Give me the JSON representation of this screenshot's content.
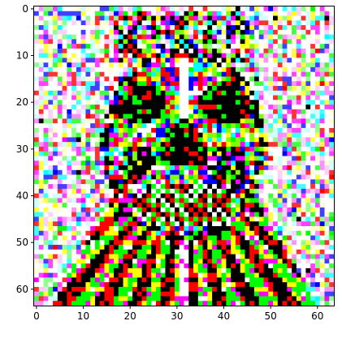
{
  "chart_data": {
    "type": "heatmap",
    "title": "",
    "xlabel": "",
    "ylabel": "",
    "grid_size": [
      64,
      64
    ],
    "xlim": [
      -0.5,
      63.5
    ],
    "ylim": [
      63.5,
      -0.5
    ],
    "x_ticks": [
      0,
      10,
      20,
      30,
      40,
      50,
      60
    ],
    "x_tick_labels": [
      "0",
      "10",
      "20",
      "30",
      "40",
      "50",
      "60"
    ],
    "y_ticks": [
      0,
      10,
      20,
      30,
      40,
      50,
      60
    ],
    "y_tick_labels": [
      "0",
      "10",
      "20",
      "30",
      "40",
      "50",
      "60"
    ],
    "grid": false,
    "colors": {
      "frame": "#000000",
      "background": "#ffffff",
      "noise_palette": [
        "#ff00ff",
        "#00ff00",
        "#ffffff",
        "#ff0000",
        "#00ffff",
        "#ffff00",
        "#0000ff",
        "#000000"
      ]
    },
    "image_description_source": "pixel image of a skull-like face with a ruffled collar; pixels are synthesized procedurally"
  }
}
